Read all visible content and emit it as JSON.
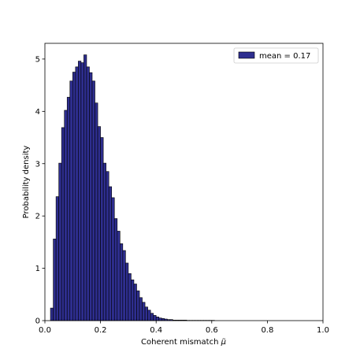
{
  "chart_data": {
    "type": "bar",
    "xlabel": "Coherent mismatch ",
    "xlabel_symbol": "μ̃",
    "ylabel": "Probability density",
    "xlim": [
      0.0,
      1.0
    ],
    "ylim": [
      0,
      5.3
    ],
    "xticks": [
      "0.0",
      "0.2",
      "0.4",
      "0.6",
      "0.8",
      "1.0"
    ],
    "yticks": [
      "0",
      "1",
      "2",
      "3",
      "4",
      "5"
    ],
    "legend": {
      "label": "mean = 0.17",
      "position": "top-right"
    },
    "bar_color": "#2e2e8f",
    "edge_color": "#000000",
    "bin_width": 0.01,
    "bin_starts": [
      0.02,
      0.03,
      0.04,
      0.05,
      0.06,
      0.07,
      0.08,
      0.09,
      0.1,
      0.11,
      0.12,
      0.13,
      0.14,
      0.15,
      0.16,
      0.17,
      0.18,
      0.19,
      0.2,
      0.21,
      0.22,
      0.23,
      0.24,
      0.25,
      0.26,
      0.27,
      0.28,
      0.29,
      0.3,
      0.31,
      0.32,
      0.33,
      0.34,
      0.35,
      0.36,
      0.37,
      0.38,
      0.39,
      0.4,
      0.41,
      0.42,
      0.43,
      0.44,
      0.45,
      0.46,
      0.47,
      0.48,
      0.49,
      0.5,
      0.51,
      0.52,
      0.53,
      0.54,
      0.55,
      0.56,
      0.57,
      0.58,
      0.59,
      0.6
    ],
    "values": [
      0.24,
      1.56,
      2.37,
      3.01,
      3.69,
      4.02,
      4.27,
      4.58,
      4.75,
      4.85,
      4.96,
      4.93,
      5.08,
      4.85,
      4.74,
      4.58,
      4.16,
      3.71,
      3.5,
      3.01,
      2.85,
      2.56,
      2.35,
      1.95,
      1.71,
      1.47,
      1.34,
      1.1,
      0.9,
      0.78,
      0.7,
      0.57,
      0.44,
      0.35,
      0.26,
      0.2,
      0.14,
      0.1,
      0.07,
      0.05,
      0.04,
      0.03,
      0.02,
      0.02,
      0.01,
      0.01,
      0.01,
      0.01,
      0.01,
      0.005,
      0.005,
      0.005,
      0.005,
      0.005,
      0.005,
      0.005,
      0.005,
      0.005,
      0.005
    ]
  }
}
